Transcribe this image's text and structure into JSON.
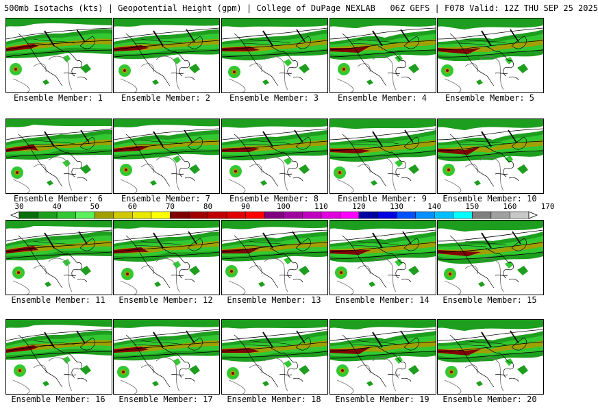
{
  "header": {
    "title": "500mb Isotachs (kts) | Geopotential Height (gpm) | College of DuPage NEXLAB   06Z GEFS | F078 Valid: 12Z THU SEP 25 2025"
  },
  "colorbar": {
    "labels": [
      "30",
      "40",
      "50",
      "60",
      "70",
      "80",
      "90",
      "100",
      "110",
      "120",
      "130",
      "140",
      "150",
      "160",
      "170"
    ],
    "colors": [
      "#0a6e0a",
      "#1e9e1e",
      "#32c832",
      "#5cf05c",
      "#a0a000",
      "#d0c800",
      "#e8e800",
      "#ffff00",
      "#800000",
      "#a00000",
      "#c00000",
      "#e00000",
      "#ff0000",
      "#800080",
      "#a000a0",
      "#c000c0",
      "#e000e0",
      "#ff00ff",
      "#0000a0",
      "#0000e0",
      "#0050ff",
      "#0090ff",
      "#00c0ff",
      "#00ffff",
      "#808080",
      "#a0a0a0",
      "#c8c8c8"
    ]
  },
  "members": [
    {
      "label": "Ensemble Member: 1"
    },
    {
      "label": "Ensemble Member: 2"
    },
    {
      "label": "Ensemble Member: 3"
    },
    {
      "label": "Ensemble Member: 4"
    },
    {
      "label": "Ensemble Member: 5"
    },
    {
      "label": "Ensemble Member: 6"
    },
    {
      "label": "Ensemble Member: 7"
    },
    {
      "label": "Ensemble Member: 8"
    },
    {
      "label": "Ensemble Member: 9"
    },
    {
      "label": "Ensemble Member: 10"
    },
    {
      "label": "Ensemble Member: 11"
    },
    {
      "label": "Ensemble Member: 12"
    },
    {
      "label": "Ensemble Member: 13"
    },
    {
      "label": "Ensemble Member: 14"
    },
    {
      "label": "Ensemble Member: 15"
    },
    {
      "label": "Ensemble Member: 16"
    },
    {
      "label": "Ensemble Member: 17"
    },
    {
      "label": "Ensemble Member: 18"
    },
    {
      "label": "Ensemble Member: 19"
    },
    {
      "label": "Ensemble Member: 20"
    }
  ]
}
